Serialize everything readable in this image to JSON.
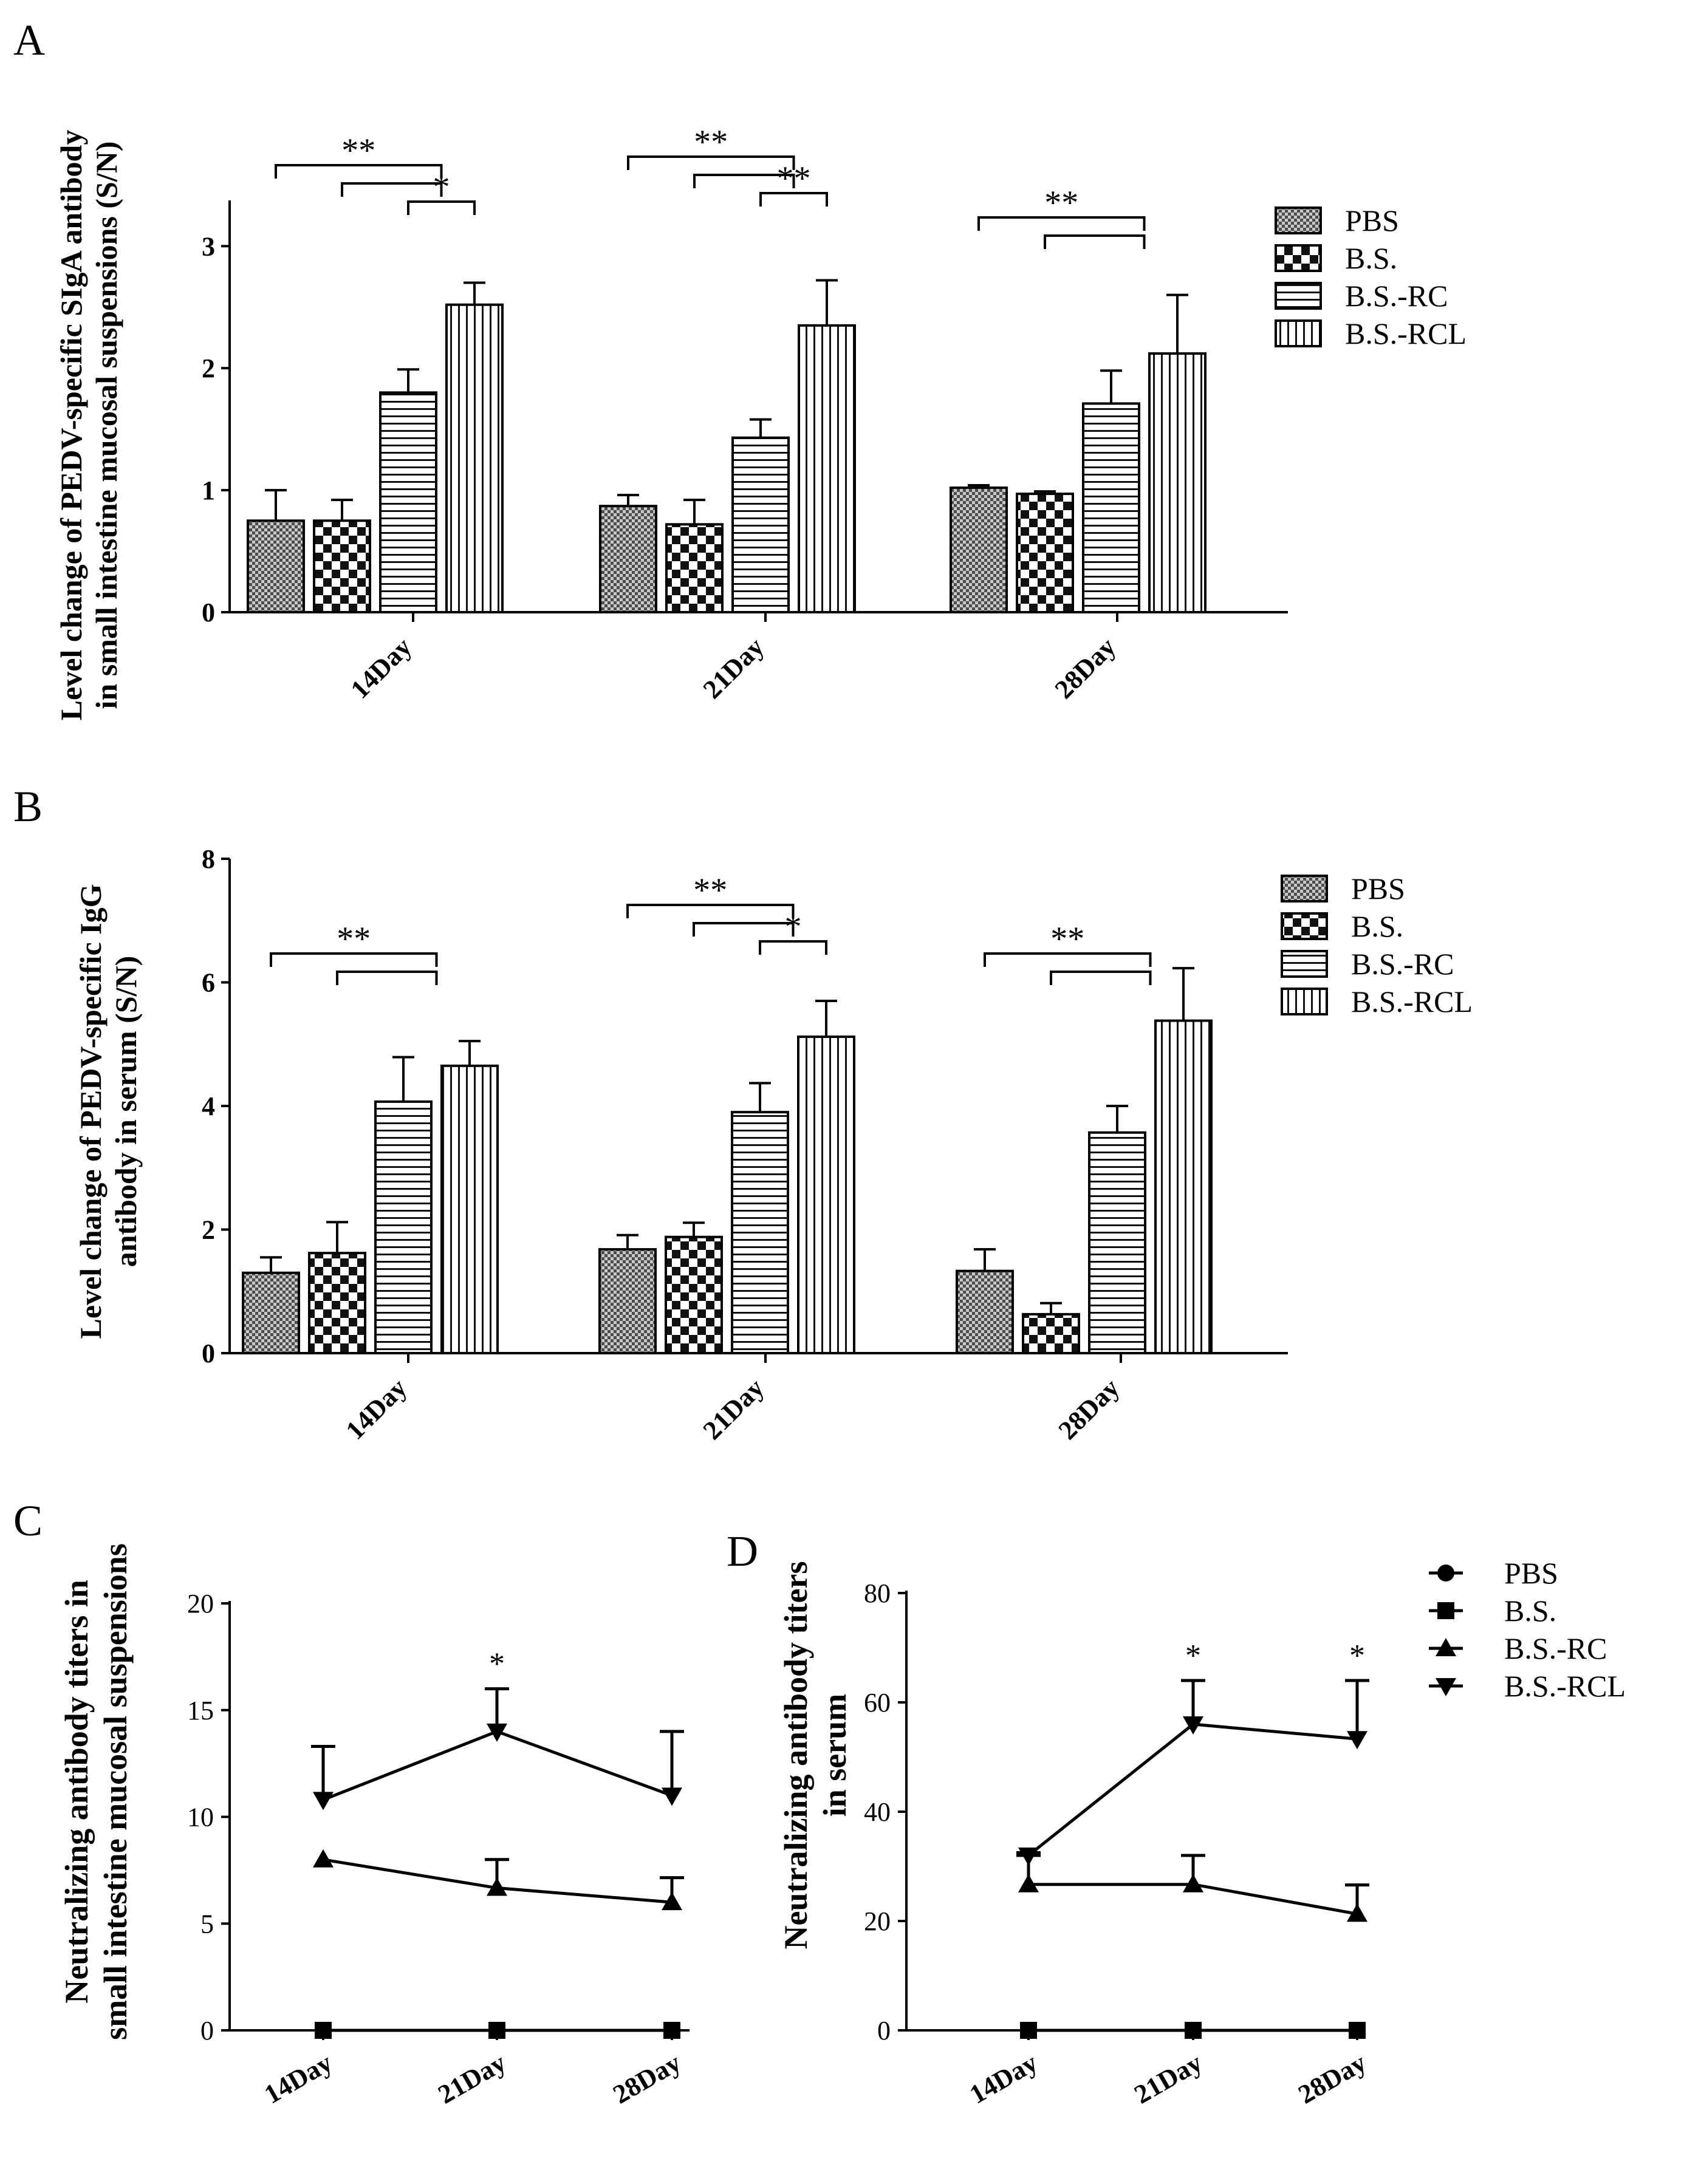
{
  "chart_data": [
    {
      "panel": "A",
      "type": "bar",
      "ylabel_lines": [
        "Level change of PEDV-specific SIgA antibody",
        "in small intestine mucosal suspensions (S/N)"
      ],
      "categories": [
        "14Day",
        "21Day",
        "28Day"
      ],
      "series": [
        {
          "name": "PBS",
          "values": [
            0.75,
            0.87,
            1.02
          ],
          "errors": [
            0.25,
            0.09,
            0.02
          ]
        },
        {
          "name": "B.S.",
          "values": [
            0.75,
            0.72,
            0.97
          ],
          "errors": [
            0.17,
            0.2,
            0.02
          ]
        },
        {
          "name": "B.S.-RC",
          "values": [
            1.8,
            1.43,
            1.71
          ],
          "errors": [
            0.19,
            0.15,
            0.27
          ]
        },
        {
          "name": "B.S.-RCL",
          "values": [
            2.52,
            2.35,
            2.12
          ],
          "errors": [
            0.18,
            0.37,
            0.48
          ]
        }
      ],
      "yticks": [
        0,
        1,
        2,
        3
      ],
      "ylim": [
        0,
        3.3
      ],
      "legend": [
        "PBS",
        "B.S.",
        "B.S.-RC",
        "B.S.-RCL"
      ],
      "significance": [
        {
          "cat": 0,
          "a": [
            0
          ],
          "b": [
            2,
            3
          ],
          "label": "**"
        },
        {
          "cat": 0,
          "a": [
            1
          ],
          "b": [
            2,
            3
          ],
          "label": ""
        },
        {
          "cat": 0,
          "a": [
            2
          ],
          "b": [
            3
          ],
          "label": "*"
        },
        {
          "cat": 1,
          "a": [
            0
          ],
          "b": [
            2,
            3
          ],
          "label": "**"
        },
        {
          "cat": 1,
          "a": [
            1
          ],
          "b": [
            2,
            3
          ],
          "label": ""
        },
        {
          "cat": 1,
          "a": [
            2
          ],
          "b": [
            3
          ],
          "label": "**"
        },
        {
          "cat": 2,
          "a": [
            0
          ],
          "b": [
            2,
            3
          ],
          "label": "**"
        },
        {
          "cat": 2,
          "a": [
            1
          ],
          "b": [
            2,
            3
          ],
          "label": ""
        }
      ]
    },
    {
      "panel": "B",
      "type": "bar",
      "ylabel_lines": [
        "Level change of PEDV-specific IgG",
        "antibody in serum (S/N)"
      ],
      "categories": [
        "14Day",
        "21Day",
        "28Day"
      ],
      "series": [
        {
          "name": "PBS",
          "values": [
            1.3,
            1.68,
            1.33
          ],
          "errors": [
            0.25,
            0.23,
            0.35
          ]
        },
        {
          "name": "B.S.",
          "values": [
            1.62,
            1.88,
            0.63
          ],
          "errors": [
            0.5,
            0.23,
            0.18
          ]
        },
        {
          "name": "B.S.-RC",
          "values": [
            4.07,
            3.9,
            3.57
          ],
          "errors": [
            0.72,
            0.47,
            0.43
          ]
        },
        {
          "name": "B.S.-RCL",
          "values": [
            4.65,
            5.12,
            5.38
          ],
          "errors": [
            0.4,
            0.58,
            0.85
          ]
        }
      ],
      "yticks": [
        0,
        2,
        4,
        6,
        8
      ],
      "ylim": [
        0,
        8
      ],
      "legend": [
        "PBS",
        "B.S.",
        "B.S.-RC",
        "B.S.-RCL"
      ],
      "significance": [
        {
          "cat": 0,
          "a": [
            0
          ],
          "b": [
            2,
            3
          ],
          "label": "**"
        },
        {
          "cat": 0,
          "a": [
            1
          ],
          "b": [
            2,
            3
          ],
          "label": ""
        },
        {
          "cat": 1,
          "a": [
            0
          ],
          "b": [
            2,
            3
          ],
          "label": "**"
        },
        {
          "cat": 1,
          "a": [
            1
          ],
          "b": [
            2,
            3
          ],
          "label": ""
        },
        {
          "cat": 1,
          "a": [
            2
          ],
          "b": [
            3
          ],
          "label": "*"
        },
        {
          "cat": 2,
          "a": [
            0
          ],
          "b": [
            2,
            3
          ],
          "label": "**"
        },
        {
          "cat": 2,
          "a": [
            1
          ],
          "b": [
            2,
            3
          ],
          "label": ""
        }
      ]
    },
    {
      "panel": "C",
      "type": "line",
      "ylabel_lines": [
        "Neutralizing antibody titers in",
        "small intestine mucosal suspensions"
      ],
      "x": [
        "14Day",
        "21Day",
        "28Day"
      ],
      "series": [
        {
          "name": "PBS",
          "values": [
            0,
            0,
            0
          ],
          "errors": [
            0,
            0,
            0
          ]
        },
        {
          "name": "B.S.",
          "values": [
            0,
            0,
            0
          ],
          "errors": [
            0,
            0,
            0
          ]
        },
        {
          "name": "B.S.-RC",
          "values": [
            8.0,
            6.67,
            6.0
          ],
          "errors": [
            0,
            1.33,
            1.15
          ]
        },
        {
          "name": "B.S.-RCL",
          "values": [
            10.8,
            14.0,
            11.0
          ],
          "errors": [
            2.5,
            2.0,
            3.0
          ]
        }
      ],
      "yticks": [
        0,
        5,
        10,
        15,
        20
      ],
      "ylim": [
        0,
        20
      ],
      "annotations": [
        {
          "x": 1,
          "label": "*"
        }
      ]
    },
    {
      "panel": "D",
      "type": "line",
      "ylabel_lines": [
        "Neutralizing antibody titers",
        "in serum"
      ],
      "x": [
        "14Day",
        "21Day",
        "28Day"
      ],
      "series": [
        {
          "name": "PBS",
          "values": [
            0,
            0,
            0
          ],
          "errors": [
            0,
            0,
            0
          ]
        },
        {
          "name": "B.S.",
          "values": [
            0,
            0,
            0
          ],
          "errors": [
            0,
            0,
            0
          ]
        },
        {
          "name": "B.S.-RC",
          "values": [
            26.7,
            26.7,
            21.3
          ],
          "errors": [
            5.3,
            5.3,
            5.3
          ]
        },
        {
          "name": "B.S.-RCL",
          "values": [
            32.0,
            56.0,
            53.3
          ],
          "errors": [
            0.5,
            8.0,
            10.7
          ]
        }
      ],
      "yticks": [
        0,
        20,
        40,
        60,
        80
      ],
      "ylim": [
        0,
        80
      ],
      "legend": [
        "PBS",
        "B.S.",
        "B.S.-RC",
        "B.S.-RCL"
      ],
      "annotations": [
        {
          "x": 1,
          "label": "*"
        },
        {
          "x": 2,
          "label": "*"
        }
      ]
    }
  ]
}
